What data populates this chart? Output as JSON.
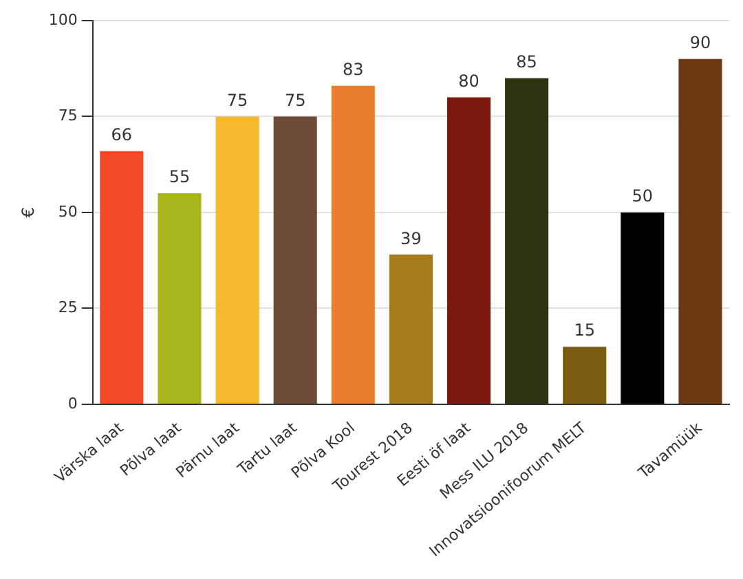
{
  "chart_data": {
    "type": "bar",
    "ylabel": "€",
    "categories": [
      "Värska laat",
      "Põlva laat",
      "Pärnu laat",
      "Tartu laat",
      "Põlva Kool",
      "Tourest 2018",
      "Eesti öf laat",
      "Mess ILU 2018",
      "Innovatsioonifoorum MELT",
      null,
      "Tavamüük"
    ],
    "values": [
      66,
      55,
      75,
      75,
      83,
      39,
      80,
      85,
      15,
      50,
      90
    ],
    "colors": [
      "#f24a28",
      "#a9b51f",
      "#f6b92d",
      "#6c4b37",
      "#e97e2f",
      "#a97b1f",
      "#7b190e",
      "#2c3311",
      "#7a5b0f",
      "#000000",
      "#6d3913"
    ],
    "ylim": [
      0,
      100
    ],
    "yticks": [
      0,
      25,
      50,
      75,
      100
    ],
    "grid": "y",
    "data_labels": true
  }
}
